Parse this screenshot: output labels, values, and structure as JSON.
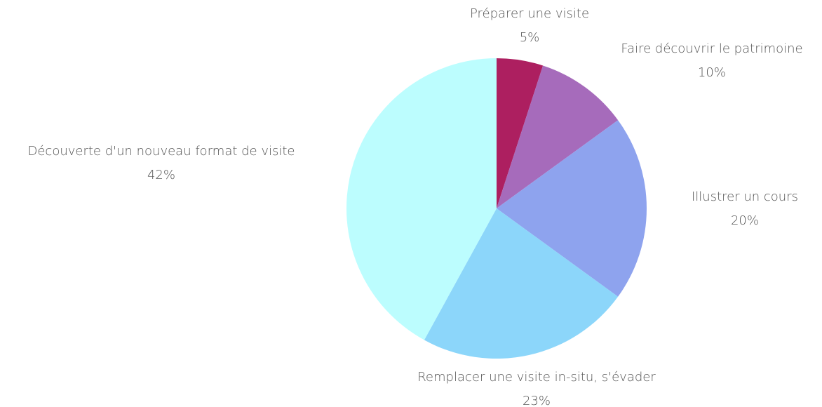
{
  "chart_data": {
    "type": "pie",
    "categories": [
      "Préparer une visite",
      "Faire découvrir le patrimoine",
      "Illustrer un cours",
      "Remplacer une visite in-situ, s'évader",
      "Découverte d'un nouveau format de visite"
    ],
    "values": [
      5,
      10,
      20,
      23,
      42
    ],
    "value_labels": [
      "5%",
      "10%",
      "20%",
      "23%",
      "42%"
    ],
    "colors": [
      "#ad1f60",
      "#a66bbb",
      "#8ea3ee",
      "#8cd6fa",
      "#bcfdfe"
    ]
  }
}
